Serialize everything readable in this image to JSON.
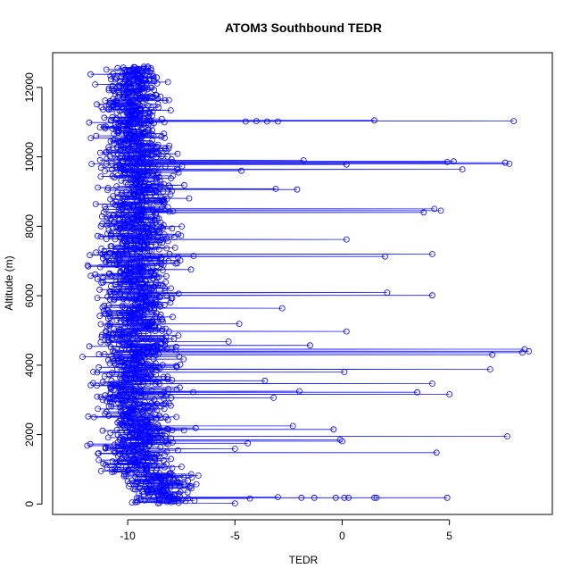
{
  "chart_data": {
    "type": "scatter",
    "title": "ATOM3 Southbound TEDR",
    "xlabel": "TEDR",
    "ylabel": "Altitude (m)",
    "xlim": [
      -13.5,
      9.8
    ],
    "ylim": [
      -300,
      13000
    ],
    "x_ticks": [
      -10,
      -5,
      0,
      5
    ],
    "y_ticks": [
      0,
      2000,
      4000,
      6000,
      8000,
      10000,
      12000
    ],
    "x_tick_labels": [
      "-10",
      "-5",
      "0",
      "5"
    ],
    "y_tick_labels": [
      "0",
      "2000",
      "4000",
      "6000",
      "8000",
      "10000",
      "12000"
    ],
    "grid": false,
    "series_color": "#0000ff",
    "marker": "open-circle",
    "connected_by_line": true,
    "legend": null,
    "notable_points": [
      {
        "x": 8.0,
        "y": 11030
      },
      {
        "x": 1.5,
        "y": 11050
      },
      {
        "x": -3.0,
        "y": 11020
      },
      {
        "x": -3.5,
        "y": 11020
      },
      {
        "x": -4.0,
        "y": 11030
      },
      {
        "x": -4.5,
        "y": 11020
      },
      {
        "x": -1.8,
        "y": 9900
      },
      {
        "x": 0.2,
        "y": 9780
      },
      {
        "x": 4.9,
        "y": 9850
      },
      {
        "x": 5.2,
        "y": 9870
      },
      {
        "x": 7.6,
        "y": 9830
      },
      {
        "x": 7.8,
        "y": 9800
      },
      {
        "x": 5.6,
        "y": 9640
      },
      {
        "x": -4.7,
        "y": 9600
      },
      {
        "x": -3.1,
        "y": 9080
      },
      {
        "x": -2.1,
        "y": 9060
      },
      {
        "x": 4.3,
        "y": 8500
      },
      {
        "x": 4.6,
        "y": 8450
      },
      {
        "x": 3.8,
        "y": 8400
      },
      {
        "x": 0.2,
        "y": 7620
      },
      {
        "x": 2.0,
        "y": 7130
      },
      {
        "x": 4.2,
        "y": 7200
      },
      {
        "x": 2.1,
        "y": 6090
      },
      {
        "x": 4.2,
        "y": 6010
      },
      {
        "x": -2.8,
        "y": 5640
      },
      {
        "x": -4.8,
        "y": 5190
      },
      {
        "x": 0.2,
        "y": 4970
      },
      {
        "x": -5.3,
        "y": 4680
      },
      {
        "x": -1.5,
        "y": 4570
      },
      {
        "x": 8.7,
        "y": 4400
      },
      {
        "x": 8.5,
        "y": 4460
      },
      {
        "x": 8.4,
        "y": 4360
      },
      {
        "x": 7.0,
        "y": 4300
      },
      {
        "x": 6.9,
        "y": 3880
      },
      {
        "x": 0.1,
        "y": 3800
      },
      {
        "x": -3.6,
        "y": 3550
      },
      {
        "x": 4.2,
        "y": 3470
      },
      {
        "x": -2.0,
        "y": 3250
      },
      {
        "x": 3.5,
        "y": 3220
      },
      {
        "x": 5.0,
        "y": 3160
      },
      {
        "x": -3.2,
        "y": 3060
      },
      {
        "x": -2.3,
        "y": 2250
      },
      {
        "x": -0.4,
        "y": 2150
      },
      {
        "x": 7.7,
        "y": 1950
      },
      {
        "x": -0.1,
        "y": 1850
      },
      {
        "x": 0.0,
        "y": 1810
      },
      {
        "x": -5.0,
        "y": 1590
      },
      {
        "x": -4.4,
        "y": 1750
      },
      {
        "x": 4.4,
        "y": 1480
      },
      {
        "x": 1.5,
        "y": 180
      },
      {
        "x": 1.6,
        "y": 180
      },
      {
        "x": 4.9,
        "y": 180
      },
      {
        "x": -1.9,
        "y": 180
      },
      {
        "x": -1.3,
        "y": 180
      },
      {
        "x": -0.3,
        "y": 180
      },
      {
        "x": 0.1,
        "y": 180
      },
      {
        "x": 0.3,
        "y": 180
      },
      {
        "x": -3.0,
        "y": 200
      },
      {
        "x": -4.3,
        "y": 160
      },
      {
        "x": -5.0,
        "y": 20
      }
    ],
    "bulk_distribution": [
      {
        "altitude_range": [
          0,
          900
        ],
        "tedr_range": [
          -11.5,
          -6.0
        ],
        "center": -8.5
      },
      {
        "altitude_range": [
          900,
          10500
        ],
        "tedr_range": [
          -12.2,
          -6.5
        ],
        "center": -9.6
      },
      {
        "altitude_range": [
          10500,
          12700
        ],
        "tedr_range": [
          -11.8,
          -7.2
        ],
        "center": -9.8
      }
    ]
  }
}
